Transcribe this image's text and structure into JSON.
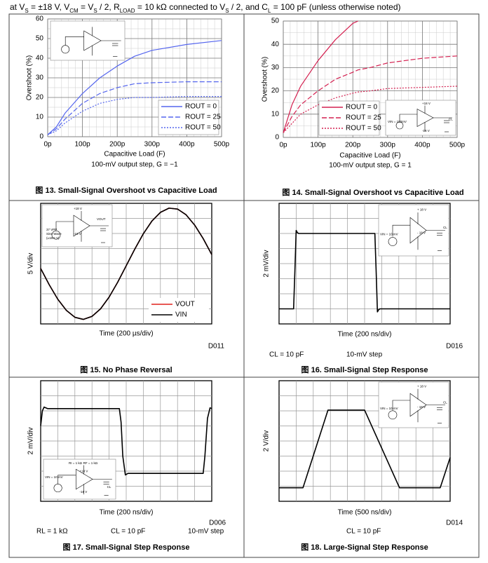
{
  "header": [
    "at V",
    "S",
    " = ±18 V, V",
    "CM",
    " = V",
    "S",
    " / 2, R",
    "LOAD",
    " = 10 kΩ connected to V",
    "S",
    " / 2, and C",
    "L",
    " = 100 pF (unless otherwise noted)"
  ],
  "chart_data": [
    {
      "type": "line",
      "caption": "图 13. Small-Signal Overshoot vs Capacitive Load",
      "subtitle": "100-mV output step, G = −1",
      "xlabel": "Capacitive Load (F)",
      "ylabel": "Overshoot (%)",
      "x": [
        0,
        2.5e-11,
        5e-11,
        1e-10,
        1.5e-10,
        2e-10,
        2.5e-10,
        3e-10,
        4e-10,
        5e-10
      ],
      "series": [
        {
          "name": "ROUT = 0",
          "color": "#5566ee",
          "style": "solid",
          "values": [
            1,
            5,
            12,
            22,
            30,
            36,
            41,
            44,
            47,
            49
          ]
        },
        {
          "name": "ROUT = 25",
          "color": "#5566ee",
          "style": "dashed",
          "values": [
            1,
            4,
            9,
            17,
            22,
            25,
            27,
            27.5,
            28,
            28
          ]
        },
        {
          "name": "ROUT = 50",
          "color": "#5566ee",
          "style": "dotted",
          "values": [
            1,
            3,
            7,
            13,
            17,
            19,
            20,
            20,
            20.5,
            20.5
          ]
        }
      ],
      "xlim": [
        0,
        5e-10
      ],
      "xticks": [
        {
          "value": 0,
          "label": "0p"
        },
        {
          "value": 1e-10,
          "label": "100p"
        },
        {
          "value": 2e-10,
          "label": "200p"
        },
        {
          "value": 3e-10,
          "label": "300p"
        },
        {
          "value": 4e-10,
          "label": "400p"
        },
        {
          "value": 5e-10,
          "label": "500p"
        }
      ],
      "ylim": [
        0,
        60
      ],
      "yticks": [
        0,
        10,
        20,
        30,
        40,
        50,
        60
      ],
      "grid": true,
      "legend": "lower right",
      "inset_labels": []
    },
    {
      "type": "line",
      "caption": "图 14. Small-Signal Overshoot vs Capacitive Load",
      "subtitle": "100-mV output step, G = 1",
      "xlabel": "Capacitive Load (F)",
      "ylabel": "Overshoot (%)",
      "x": [
        0,
        2.5e-11,
        5e-11,
        1e-10,
        1.5e-10,
        2e-10,
        2.15e-10,
        2.5e-10,
        3e-10,
        4e-10,
        5e-10
      ],
      "series": [
        {
          "name": "ROUT = 0",
          "color": "#d42050",
          "style": "solid",
          "values": [
            2,
            14,
            22,
            33,
            42,
            49,
            50,
            null,
            null,
            null,
            null
          ]
        },
        {
          "name": "ROUT = 25",
          "color": "#d42050",
          "style": "dashed",
          "values": [
            2,
            9,
            14,
            20,
            25,
            28,
            29,
            30,
            32,
            34,
            35
          ]
        },
        {
          "name": "ROUT = 50",
          "color": "#d42050",
          "style": "dotted",
          "values": [
            2,
            6,
            10,
            14,
            17,
            19,
            19.5,
            20,
            21,
            21.5,
            22
          ]
        }
      ],
      "xlim": [
        0,
        5e-10
      ],
      "xticks": [
        {
          "value": 0,
          "label": "0p"
        },
        {
          "value": 1e-10,
          "label": "100p"
        },
        {
          "value": 2e-10,
          "label": "200p"
        },
        {
          "value": 3e-10,
          "label": "300p"
        },
        {
          "value": 4e-10,
          "label": "400p"
        },
        {
          "value": 5e-10,
          "label": "500p"
        }
      ],
      "ylim": [
        0,
        50
      ],
      "yticks": [
        0,
        10,
        20,
        30,
        40,
        50
      ],
      "grid": true,
      "legend": "lower center",
      "inset_labels": [
        "+18 V",
        "-18 V",
        "VIN = 100mV",
        "CL"
      ]
    },
    {
      "type": "line",
      "caption": "图 15. No Phase Reversal",
      "xlabel": "Time (200 µs/div)",
      "ylabel": "5 V/div",
      "code": "D011",
      "x": [
        0,
        100,
        200,
        300,
        400,
        500,
        600,
        700,
        800,
        900,
        1000,
        1100,
        1200,
        1300,
        1400,
        1500,
        1600,
        1700,
        1800,
        1900,
        2000
      ],
      "series": [
        {
          "name": "VOUT",
          "color": "#e0201c",
          "style": "solid",
          "values": [
            -1.6,
            -7,
            -11.8,
            -15.5,
            -17.8,
            -18.5,
            -17.5,
            -15,
            -11.1,
            -6.2,
            -0.7,
            4.8,
            9.9,
            14.1,
            17,
            18.4,
            18.1,
            16.2,
            12.8,
            8.3,
            3
          ]
        },
        {
          "name": "VIN",
          "color": "#000000",
          "style": "solid",
          "values": [
            -1.6,
            -7,
            -11.8,
            -15.5,
            -17.8,
            -18.5,
            -17.5,
            -15,
            -11.1,
            -6.2,
            -0.7,
            4.8,
            9.9,
            14.1,
            17,
            18.4,
            18.1,
            16.2,
            12.8,
            8.3,
            3
          ]
        }
      ],
      "xlim": [
        0,
        2000
      ],
      "ylim": [
        -20,
        20
      ],
      "grid": true,
      "legend": "lower right",
      "inset_labels": [
        "+18 V",
        "VOUT",
        "-18 V",
        "37 VPP",
        "Sine Wave",
        "(±18.5 V)"
      ]
    },
    {
      "type": "line",
      "caption": "图 16. Small-Signal Step Response",
      "xlabel": "Time (200 ns/div)",
      "ylabel": "2 mV/div",
      "code": "D016",
      "notes": [
        "CL = 10 pF",
        "10-mV step"
      ],
      "x": [
        0,
        170,
        185,
        200,
        215,
        230,
        1120,
        1135,
        1150,
        1165,
        1180,
        2000
      ],
      "series": [
        {
          "name": "VOUT",
          "color": "#000000",
          "style": "solid",
          "values": [
            -6,
            -6,
            -1,
            4.4,
            4.1,
            4,
            4,
            -1,
            -6.4,
            -6.1,
            -6,
            -6
          ]
        }
      ],
      "xlim": [
        0,
        2000
      ],
      "ylim": [
        -8,
        8
      ],
      "grid": true,
      "inset_labels": [
        "+ 18 V",
        "- 18 V",
        "VIN = 10 mV",
        "CL"
      ]
    },
    {
      "type": "line",
      "caption": "图 17. Small-Signal Step Response",
      "xlabel": "Time (200 ns/div)",
      "ylabel": "2 mV/div",
      "code": "D006",
      "notes": [
        "RL = 1 kΩ",
        "CL = 10 pF",
        "10-mV step"
      ],
      "x": [
        0,
        20,
        40,
        80,
        920,
        940,
        960,
        990,
        1020,
        1900,
        1920,
        1950,
        1980,
        2000
      ],
      "series": [
        {
          "name": "VOUT",
          "color": "#000000",
          "style": "solid",
          "values": [
            2,
            4,
            4.5,
            4.3,
            4.3,
            2.5,
            -2,
            -4.5,
            -4.3,
            -4.3,
            -2,
            3,
            4.4,
            4.3
          ]
        }
      ],
      "xlim": [
        0,
        2000
      ],
      "ylim": [
        -8,
        8
      ],
      "grid": true,
      "inset_labels": [
        "RI = 1 kΩ",
        "RF = 1 kΩ",
        "+18 V",
        "VIN = 10 mV",
        "-18 V",
        "CL"
      ]
    },
    {
      "type": "line",
      "caption": "图 18. Large-Signal Step Response",
      "xlabel": "Time (500 ns/div)",
      "ylabel": "2 V/div",
      "code": "D014",
      "notes": [
        "CL = 10 pF"
      ],
      "x": [
        0,
        700,
        1430,
        2500,
        3520,
        4710,
        5000
      ],
      "series": [
        {
          "name": "VOUT",
          "color": "#000000",
          "style": "solid",
          "values": [
            -6.2,
            -6.2,
            4.1,
            4.1,
            -6.2,
            -6.2,
            -2.2
          ]
        }
      ],
      "xlim": [
        0,
        5000
      ],
      "ylim": [
        -8,
        8
      ],
      "grid": true,
      "inset_labels": [
        "+ 18 V",
        "- 18 V",
        "VIN = 10 mV",
        "CL"
      ]
    }
  ]
}
